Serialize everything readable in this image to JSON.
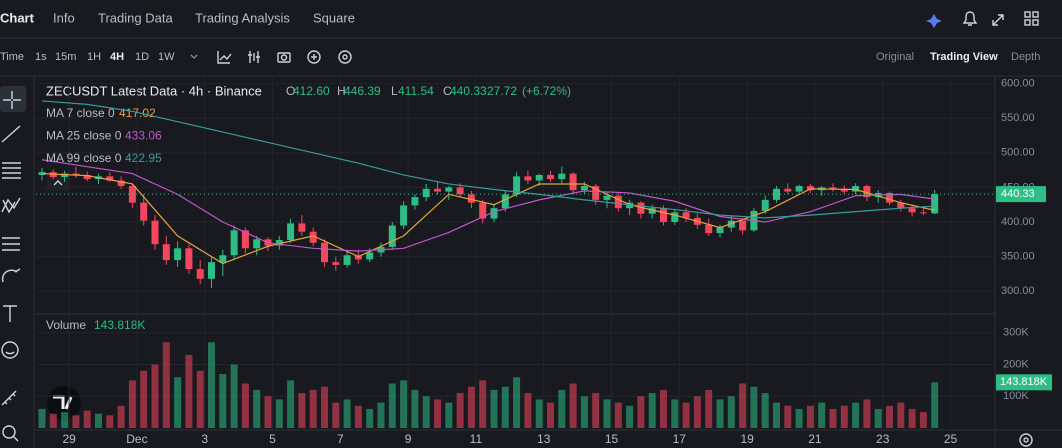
{
  "nav": [
    "Chart",
    "Info",
    "Trading Data",
    "Trading Analysis",
    "Square"
  ],
  "toolbar": {
    "intervals": [
      "Time",
      "1s",
      "15m",
      "1H",
      "4H",
      "1D",
      "1W"
    ],
    "active": "4H",
    "views": [
      "Original",
      "Trading View",
      "Depth"
    ],
    "active_view": "Trading View"
  },
  "chart_data": {
    "type": "candlestick",
    "title": "ZECUSDT Latest Data · 4h · Binance",
    "ohlc": [
      {
        "k": "O",
        "v": "412.60"
      },
      {
        "k": "H",
        "v": "446.39"
      },
      {
        "k": "L",
        "v": "411.54"
      },
      {
        "k": "C",
        "v": "440.33"
      }
    ],
    "change": "27.72",
    "change_pct": "(+6.72%)",
    "up_color": "#2ebd85",
    "down_color": "#f6465d",
    "ylim": [
      270,
      611
    ],
    "yticks": [
      {
        "value": 300,
        "label": "300.00"
      },
      {
        "value": 350,
        "label": "350.00"
      },
      {
        "value": 400,
        "label": "400.00"
      },
      {
        "value": 450,
        "label": "450.00"
      },
      {
        "value": 500,
        "label": "500.00"
      },
      {
        "value": 550,
        "label": "550.00"
      },
      {
        "value": 600,
        "label": "600.00"
      }
    ],
    "last_price": {
      "value": 440.33,
      "label": "440.33"
    },
    "date_ticks": [
      "29",
      "Dec",
      "3",
      "5",
      "7",
      "9",
      "11",
      "13",
      "15",
      "17",
      "19",
      "21",
      "23",
      "25"
    ],
    "candles": [
      [
        468,
        478,
        460,
        472
      ],
      [
        472,
        476,
        462,
        465
      ],
      [
        465,
        474,
        458,
        470
      ],
      [
        470,
        480,
        464,
        468
      ],
      [
        468,
        473,
        459,
        462
      ],
      [
        462,
        470,
        455,
        466
      ],
      [
        466,
        472,
        458,
        460
      ],
      [
        460,
        466,
        448,
        452
      ],
      [
        452,
        456,
        420,
        428
      ],
      [
        428,
        440,
        395,
        402
      ],
      [
        402,
        410,
        360,
        368
      ],
      [
        368,
        380,
        338,
        345
      ],
      [
        345,
        372,
        335,
        362
      ],
      [
        362,
        368,
        325,
        332
      ],
      [
        332,
        345,
        310,
        318
      ],
      [
        318,
        350,
        305,
        342
      ],
      [
        342,
        360,
        322,
        352
      ],
      [
        352,
        395,
        346,
        388
      ],
      [
        388,
        392,
        355,
        362
      ],
      [
        362,
        380,
        352,
        375
      ],
      [
        375,
        378,
        358,
        366
      ],
      [
        366,
        380,
        360,
        374
      ],
      [
        374,
        405,
        370,
        398
      ],
      [
        398,
        410,
        380,
        386
      ],
      [
        386,
        392,
        365,
        370
      ],
      [
        370,
        375,
        335,
        342
      ],
      [
        342,
        350,
        330,
        338
      ],
      [
        338,
        358,
        334,
        352
      ],
      [
        352,
        360,
        340,
        346
      ],
      [
        346,
        362,
        342,
        356
      ],
      [
        356,
        370,
        350,
        364
      ],
      [
        364,
        400,
        360,
        395
      ],
      [
        395,
        430,
        390,
        424
      ],
      [
        424,
        440,
        418,
        436
      ],
      [
        436,
        455,
        430,
        448
      ],
      [
        448,
        458,
        440,
        444
      ],
      [
        444,
        452,
        432,
        450
      ],
      [
        450,
        456,
        436,
        440
      ],
      [
        440,
        445,
        420,
        428
      ],
      [
        428,
        432,
        398,
        405
      ],
      [
        405,
        425,
        400,
        420
      ],
      [
        420,
        445,
        415,
        440
      ],
      [
        440,
        472,
        436,
        466
      ],
      [
        466,
        474,
        455,
        460
      ],
      [
        460,
        470,
        452,
        468
      ],
      [
        468,
        474,
        458,
        462
      ],
      [
        462,
        480,
        456,
        470
      ],
      [
        470,
        472,
        440,
        446
      ],
      [
        446,
        458,
        440,
        452
      ],
      [
        452,
        455,
        425,
        432
      ],
      [
        432,
        444,
        420,
        438
      ],
      [
        438,
        442,
        415,
        420
      ],
      [
        420,
        432,
        410,
        428
      ],
      [
        428,
        430,
        405,
        412
      ],
      [
        412,
        425,
        405,
        420
      ],
      [
        420,
        424,
        395,
        400
      ],
      [
        400,
        418,
        396,
        414
      ],
      [
        414,
        420,
        400,
        406
      ],
      [
        406,
        412,
        390,
        396
      ],
      [
        396,
        405,
        380,
        384
      ],
      [
        384,
        396,
        378,
        392
      ],
      [
        392,
        408,
        386,
        402
      ],
      [
        402,
        406,
        382,
        388
      ],
      [
        388,
        420,
        386,
        416
      ],
      [
        416,
        438,
        412,
        432
      ],
      [
        432,
        452,
        428,
        448
      ],
      [
        448,
        456,
        440,
        444
      ],
      [
        444,
        454,
        440,
        452
      ],
      [
        452,
        455,
        442,
        446
      ],
      [
        446,
        452,
        438,
        450
      ],
      [
        450,
        456,
        444,
        448
      ],
      [
        448,
        453,
        440,
        444
      ],
      [
        444,
        456,
        440,
        452
      ],
      [
        452,
        454,
        430,
        436
      ],
      [
        436,
        446,
        428,
        442
      ],
      [
        442,
        444,
        424,
        428
      ],
      [
        428,
        432,
        415,
        420
      ],
      [
        420,
        424,
        408,
        414
      ],
      [
        414,
        420,
        410,
        412.6
      ],
      [
        412.6,
        446.39,
        411.54,
        440.33
      ]
    ],
    "ma_x": [
      0,
      4,
      8,
      12,
      16,
      20,
      24,
      28,
      32,
      36,
      40,
      44,
      48,
      52,
      56,
      60,
      64,
      68,
      72,
      76,
      79
    ],
    "ma": [
      {
        "name": "MA 7 close 0",
        "value_label": "417.02",
        "color": "#e8a33c",
        "values": [
          470,
          467,
          455,
          380,
          340,
          365,
          380,
          350,
          380,
          440,
          425,
          455,
          455,
          425,
          410,
          392,
          415,
          448,
          447,
          428,
          417.02
        ]
      },
      {
        "name": "MA 25 close 0",
        "value_label": "433.06",
        "color": "#c157c8",
        "values": [
          490,
          480,
          470,
          440,
          400,
          370,
          362,
          358,
          362,
          385,
          415,
          432,
          445,
          442,
          430,
          408,
          400,
          415,
          438,
          440,
          433.06
        ]
      },
      {
        "name": "MA 99 close 0",
        "value_label": "422.95",
        "color": "#3b9a98",
        "values": [
          575,
          570,
          560,
          545,
          530,
          515,
          500,
          485,
          468,
          455,
          447,
          440,
          432,
          425,
          418,
          410,
          406,
          410,
          415,
          420,
          422.95
        ]
      }
    ],
    "volume": {
      "name": "Volume",
      "value_label": "143.818K",
      "y2lim": [
        0,
        340000
      ],
      "y2ticks": [
        {
          "value": 100000,
          "label": "100K"
        },
        {
          "value": 200000,
          "label": "200K"
        },
        {
          "value": 300000,
          "label": "300K"
        }
      ],
      "values": [
        60000,
        45000,
        50000,
        40000,
        55000,
        45000,
        40000,
        70000,
        150000,
        180000,
        200000,
        270000,
        160000,
        230000,
        180000,
        270000,
        170000,
        200000,
        140000,
        120000,
        100000,
        90000,
        150000,
        110000,
        120000,
        130000,
        80000,
        90000,
        70000,
        60000,
        80000,
        140000,
        150000,
        120000,
        100000,
        90000,
        80000,
        110000,
        130000,
        150000,
        120000,
        130000,
        160000,
        110000,
        90000,
        80000,
        120000,
        140000,
        100000,
        110000,
        90000,
        80000,
        70000,
        100000,
        110000,
        120000,
        90000,
        80000,
        100000,
        120000,
        90000,
        100000,
        140000,
        130000,
        110000,
        80000,
        70000,
        60000,
        70000,
        80000,
        60000,
        70000,
        80000,
        90000,
        60000,
        70000,
        80000,
        60000,
        50000,
        143818
      ]
    }
  }
}
